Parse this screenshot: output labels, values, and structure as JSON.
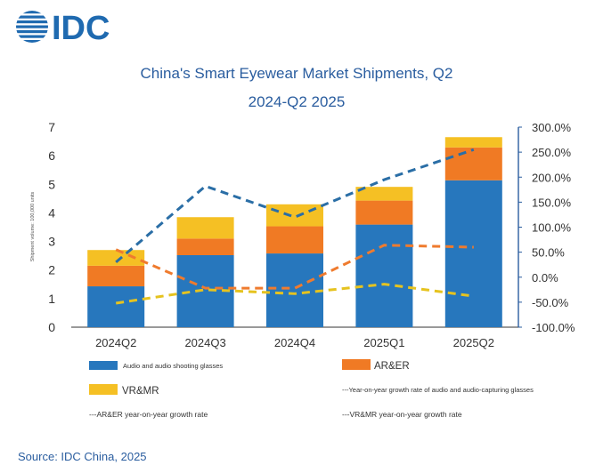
{
  "brand": {
    "logo_text": "IDC",
    "color": "#1f6ab0"
  },
  "source": "Source: IDC China, 2025",
  "chart_data": {
    "type": "bar",
    "title_line1": "China's Smart Eyewear Market Shipments, Q2",
    "title_line2": "2024-Q2 2025",
    "ylabel": "Shipment volume: 100,000 units",
    "categories": [
      "2024Q2",
      "2024Q3",
      "2024Q4",
      "2025Q1",
      "2025Q2"
    ],
    "ylim": [
      0,
      7
    ],
    "yticks": [
      0,
      1,
      2,
      3,
      4,
      5,
      6,
      7
    ],
    "y2lim": [
      -100,
      300
    ],
    "y2ticks": [
      "300.0%",
      "250.0%",
      "200.0%",
      "150.0%",
      "100.0%",
      "50.0%",
      "0.0%",
      "-50.0%",
      "-100.0%"
    ],
    "bar_series": [
      {
        "name": "Audio and audio shooting glasses",
        "color": "#2777bd",
        "values": [
          1.43,
          2.52,
          2.58,
          3.59,
          5.14
        ]
      },
      {
        "name": "AR&ER",
        "color": "#f07a24",
        "values": [
          0.72,
          0.58,
          0.95,
          0.84,
          1.15
        ]
      },
      {
        "name": "VR&MR",
        "color": "#f5c024",
        "values": [
          0.55,
          0.75,
          0.77,
          0.48,
          0.36
        ]
      }
    ],
    "line_series": [
      {
        "name": "Year-on-year growth rate of audio and audio-capturing glasses",
        "color": "#2a6ea6",
        "values": [
          30,
          182,
          120,
          195,
          255
        ]
      },
      {
        "name": "AR&ER year-on-year growth rate",
        "color": "#ef7b2e",
        "values": [
          55,
          -22,
          -22,
          64,
          60
        ]
      },
      {
        "name": "VR&MR year-on-year growth rate",
        "color": "#e6c31f",
        "values": [
          -52,
          -25,
          -33,
          -14,
          -38
        ]
      }
    ],
    "legend": {
      "audio_label": "Audio and audio shooting glasses",
      "arer_label": "AR&ER",
      "vrmr_label": "VR&MR",
      "audio_growth_label": "---Year-on-year growth rate of audio and audio-capturing glasses",
      "arer_growth_label": "---AR&ER year-on-year growth rate",
      "vrmr_growth_label": "---VR&MR year-on-year growth rate"
    },
    "grid": false
  }
}
